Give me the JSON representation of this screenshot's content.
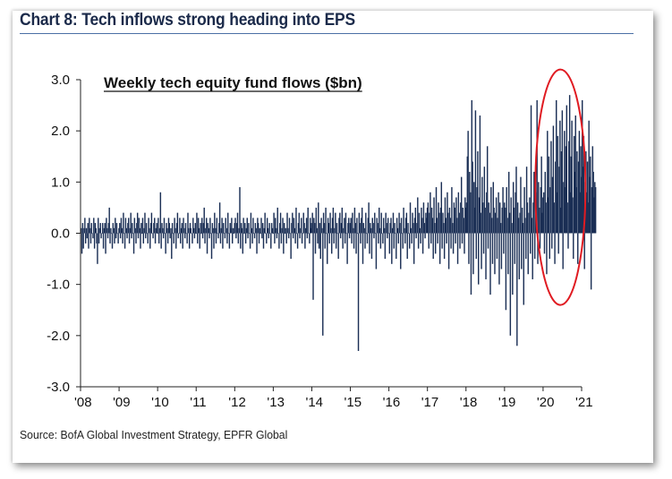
{
  "chart_data": {
    "type": "bar",
    "title": "Chart 8: Tech inflows strong heading into EPS",
    "subtitle": "Weekly tech equity fund flows ($bn)",
    "source": "Source: BofA Global Investment Strategy, EPFR Global",
    "ylim": [
      -3.0,
      3.0
    ],
    "y_ticks": [
      "3.0",
      "2.0",
      "1.0",
      "0.0",
      "-1.0",
      "-2.0",
      "-3.0"
    ],
    "x_ticks": [
      "'08",
      "'09",
      "'10",
      "'11",
      "'12",
      "'13",
      "'14",
      "'15",
      "'16",
      "'17",
      "'18",
      "'19",
      "'20",
      "'21"
    ],
    "grid": false,
    "bar_color": "#1b2f55",
    "annotation": {
      "shape": "ellipse",
      "color": "#e01b22",
      "x_range": [
        2019.8,
        2021.1
      ],
      "y_range": [
        -1.4,
        3.2
      ]
    },
    "weekly_series": [
      {
        "year": 2008,
        "values": [
          0.1,
          -0.4,
          0.2,
          -0.3,
          0.1,
          0.3,
          -0.2,
          0.1,
          -0.1,
          0.2,
          -0.3,
          0.3,
          0.1,
          -0.2,
          0.2,
          0.0,
          -0.1,
          0.3,
          -0.3,
          0.2,
          0.1,
          -0.2,
          -0.6,
          0.3,
          -0.2,
          0.1,
          0.2,
          -0.1,
          0.0,
          0.2,
          -0.3,
          0.1,
          0.2,
          -0.4,
          0.3,
          0.1,
          -0.1,
          0.2,
          0.5,
          -0.2,
          0.1,
          0.0,
          -0.3,
          0.2,
          0.1,
          -0.2,
          0.3,
          -0.1,
          0.2,
          0.0,
          -0.2,
          0.1
        ]
      },
      {
        "year": 2009,
        "values": [
          0.2,
          -0.1,
          0.3,
          0.1,
          -0.2,
          0.4,
          0.0,
          -0.3,
          0.3,
          0.1,
          -0.1,
          0.2,
          0.3,
          -0.2,
          0.1,
          0.4,
          -0.1,
          0.2,
          0.0,
          -0.4,
          0.3,
          0.1,
          -0.2,
          0.2,
          0.4,
          -0.1,
          0.3,
          0.1,
          -0.3,
          0.2,
          0.0,
          0.3,
          -0.2,
          0.1,
          0.4,
          -0.1,
          0.2,
          0.0,
          -0.2,
          0.3,
          0.1,
          -0.3,
          0.2,
          0.4,
          0.0,
          -0.1,
          0.2,
          0.3,
          -0.2,
          0.1,
          0.2,
          0.0
        ]
      },
      {
        "year": 2010,
        "values": [
          0.3,
          -0.2,
          0.1,
          0.8,
          -0.3,
          0.2,
          0.1,
          -0.1,
          0.3,
          0.0,
          -0.4,
          0.2,
          0.1,
          -0.2,
          0.3,
          0.2,
          -0.1,
          0.1,
          -0.5,
          0.2,
          0.0,
          -0.2,
          0.3,
          0.1,
          -0.3,
          0.2,
          0.4,
          -0.1,
          0.0,
          0.3,
          -0.2,
          0.1,
          0.2,
          -0.3,
          0.3,
          0.1,
          -0.1,
          0.2,
          0.0,
          -0.2,
          0.4,
          0.1,
          -0.3,
          0.2,
          0.1,
          0.0,
          -0.2,
          0.3,
          0.1,
          -0.1,
          0.2,
          0.0
        ]
      },
      {
        "year": 2011,
        "values": [
          0.4,
          -0.2,
          0.3,
          0.1,
          -0.3,
          0.2,
          0.0,
          0.3,
          -0.1,
          0.2,
          0.5,
          -0.2,
          0.1,
          0.3,
          -0.4,
          0.2,
          0.1,
          -0.1,
          0.3,
          0.0,
          -0.5,
          0.2,
          0.1,
          -0.3,
          0.4,
          0.1,
          -0.2,
          0.3,
          0.0,
          -0.1,
          0.2,
          0.6,
          -0.2,
          0.1,
          0.3,
          -0.3,
          0.2,
          0.0,
          -0.1,
          0.3,
          0.1,
          -0.2,
          0.4,
          0.0,
          -0.3,
          0.2,
          0.1,
          0.3,
          -0.2,
          0.1,
          0.0,
          0.2
        ]
      },
      {
        "year": 2012,
        "values": [
          0.3,
          -0.1,
          0.2,
          0.4,
          -0.2,
          0.1,
          0.9,
          -0.3,
          0.2,
          0.1,
          -0.4,
          0.3,
          0.0,
          0.2,
          -0.2,
          0.1,
          0.3,
          -0.1,
          0.2,
          0.0,
          -0.3,
          0.4,
          0.1,
          -0.2,
          0.3,
          0.0,
          -0.1,
          0.2,
          0.1,
          -0.4,
          0.3,
          0.2,
          -0.2,
          0.1,
          0.0,
          0.3,
          -0.1,
          0.2,
          -0.3,
          0.1,
          0.4,
          0.0,
          -0.2,
          0.3,
          0.1,
          -0.1,
          0.2,
          0.0,
          -0.3,
          0.2,
          0.1,
          0.0
        ]
      },
      {
        "year": 2013,
        "values": [
          0.4,
          -0.2,
          0.3,
          0.1,
          -0.1,
          0.5,
          0.0,
          -0.3,
          0.2,
          0.4,
          -0.2,
          0.1,
          0.3,
          -0.4,
          0.2,
          0.0,
          0.1,
          -0.2,
          0.4,
          0.1,
          -0.1,
          0.3,
          0.0,
          -0.5,
          0.2,
          0.4,
          -0.1,
          0.3,
          0.1,
          -0.2,
          0.5,
          0.0,
          -0.3,
          0.2,
          0.4,
          -0.1,
          0.1,
          0.3,
          -0.2,
          0.0,
          0.4,
          0.2,
          -0.3,
          0.1,
          0.3,
          -0.1,
          0.5,
          0.0,
          -0.2,
          0.3,
          0.1,
          0.2
        ]
      },
      {
        "year": 2014,
        "values": [
          0.4,
          -1.3,
          0.3,
          0.2,
          -0.4,
          0.5,
          0.1,
          -0.2,
          0.6,
          -0.3,
          0.2,
          -0.5,
          0.3,
          0.1,
          -2.0,
          0.4,
          0.2,
          -0.3,
          0.5,
          0.0,
          -0.6,
          0.3,
          0.2,
          -0.2,
          0.4,
          0.1,
          -0.4,
          0.3,
          0.5,
          -0.2,
          0.1,
          0.4,
          -0.3,
          0.2,
          0.0,
          -0.5,
          0.3,
          0.4,
          -0.1,
          0.2,
          0.5,
          -0.3,
          0.1,
          0.3,
          -0.2,
          0.4,
          0.0,
          -0.6,
          0.2,
          0.3,
          -0.1,
          0.2
        ]
      },
      {
        "year": 2015,
        "values": [
          0.3,
          -0.2,
          0.4,
          0.1,
          -0.3,
          0.5,
          0.2,
          -0.4,
          0.3,
          0.0,
          -2.3,
          0.4,
          0.2,
          -0.2,
          0.3,
          0.5,
          -0.6,
          0.2,
          0.1,
          -0.3,
          0.4,
          0.0,
          -0.2,
          0.3,
          0.6,
          -0.4,
          0.2,
          0.1,
          -0.5,
          0.3,
          0.2,
          -0.1,
          0.4,
          0.0,
          -0.7,
          0.3,
          0.2,
          -0.2,
          0.5,
          0.1,
          -0.3,
          0.4,
          0.0,
          -0.2,
          0.3,
          0.1,
          -0.5,
          0.4,
          0.2,
          -0.1,
          0.3,
          0.0
        ]
      },
      {
        "year": 2016,
        "values": [
          -0.4,
          0.2,
          0.3,
          -0.6,
          0.1,
          0.4,
          -0.3,
          0.2,
          0.0,
          -0.5,
          0.3,
          0.1,
          -0.2,
          0.4,
          0.2,
          -0.7,
          0.3,
          0.0,
          -0.3,
          0.5,
          0.1,
          -0.2,
          0.3,
          0.4,
          -0.5,
          0.2,
          0.0,
          -0.3,
          0.6,
          0.1,
          -0.2,
          0.4,
          0.2,
          -0.6,
          0.3,
          0.5,
          -0.1,
          0.2,
          0.7,
          -0.3,
          0.4,
          0.1,
          -0.2,
          0.5,
          0.3,
          -0.4,
          0.6,
          0.2,
          -0.1,
          0.4,
          0.3,
          0.5
        ]
      },
      {
        "year": 2017,
        "values": [
          0.6,
          -0.3,
          0.4,
          0.8,
          -0.2,
          0.5,
          0.3,
          -0.5,
          0.7,
          0.2,
          -0.4,
          0.9,
          0.3,
          -0.2,
          0.6,
          0.4,
          -0.6,
          0.5,
          1.0,
          -0.3,
          0.4,
          0.2,
          -0.5,
          0.7,
          0.3,
          -0.2,
          0.8,
          0.4,
          -0.7,
          0.5,
          0.3,
          -0.3,
          0.9,
          0.2,
          -0.4,
          0.6,
          0.5,
          -0.2,
          0.7,
          0.3,
          -0.6,
          0.8,
          0.4,
          -0.3,
          0.6,
          1.1,
          -0.2,
          0.5,
          0.3,
          -0.4,
          0.7,
          0.5
        ]
      },
      {
        "year": 2018,
        "values": [
          0.6,
          1.5,
          2.0,
          -0.6,
          1.2,
          0.8,
          -1.2,
          2.6,
          1.4,
          -0.8,
          1.0,
          0.5,
          2.4,
          -0.5,
          0.9,
          1.6,
          -1.0,
          0.7,
          2.3,
          0.4,
          -0.7,
          1.1,
          0.6,
          -0.4,
          1.3,
          0.5,
          -0.9,
          0.8,
          1.7,
          -0.3,
          0.6,
          0.4,
          -1.2,
          0.9,
          0.3,
          -0.6,
          1.0,
          0.5,
          -0.8,
          0.4,
          0.7,
          -0.5,
          0.3,
          0.8,
          -1.0,
          0.6,
          0.2,
          -0.7,
          0.5,
          0.9,
          -0.4,
          0.6
        ]
      },
      {
        "year": 2019,
        "values": [
          0.5,
          -1.5,
          0.9,
          0.3,
          -0.8,
          1.2,
          0.4,
          -2.0,
          0.7,
          0.2,
          -1.2,
          1.0,
          0.5,
          -0.6,
          0.8,
          1.3,
          -2.2,
          0.6,
          0.3,
          -0.9,
          0.4,
          1.1,
          -0.7,
          0.5,
          0.2,
          -1.4,
          0.9,
          0.3,
          -0.5,
          1.3,
          0.6,
          -0.8,
          0.4,
          0.7,
          -0.4,
          2.5,
          0.3,
          -0.9,
          0.6,
          1.2,
          -0.5,
          0.8,
          0.4,
          2.6,
          -0.6,
          1.0,
          0.5,
          -0.3,
          0.9,
          1.5,
          0.4,
          0.7
        ]
      },
      {
        "year": 2020,
        "values": [
          0.8,
          -0.4,
          1.2,
          0.6,
          -0.8,
          2.0,
          0.7,
          1.5,
          -0.5,
          0.9,
          1.8,
          -0.3,
          1.1,
          2.1,
          0.6,
          -0.6,
          1.4,
          2.6,
          0.8,
          1.9,
          -0.4,
          1.3,
          2.2,
          0.5,
          1.6,
          2.4,
          -0.7,
          1.0,
          2.0,
          0.9,
          1.7,
          2.5,
          0.6,
          -0.3,
          1.8,
          2.7,
          0.8,
          1.5,
          2.2,
          0.7,
          -0.5,
          1.9,
          1.2,
          2.3,
          0.9,
          1.6,
          -0.6,
          1.4,
          2.0,
          0.8,
          1.7,
          1.1
        ]
      },
      {
        "year": 2021,
        "values": [
          2.6,
          1.3,
          1.9,
          -0.7,
          1.0,
          1.6,
          0.8,
          1.4,
          0.6,
          2.2,
          1.1,
          1.5,
          -1.1,
          0.9,
          1.7,
          1.2,
          0.7,
          1.0,
          0.9
        ]
      }
    ]
  }
}
